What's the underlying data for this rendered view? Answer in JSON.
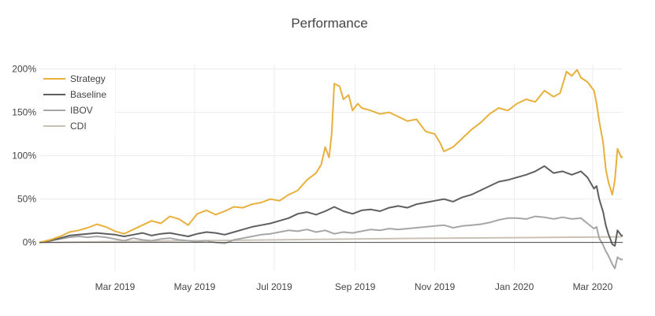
{
  "chart_data": {
    "type": "line",
    "title": "Performance",
    "xlabel": "",
    "ylabel": "",
    "x_range": [
      "2019-01-02",
      "2020-03-24"
    ],
    "ylim": [
      -0.33,
      2.05
    ],
    "yticks": [
      0,
      0.5,
      1.0,
      1.5,
      2.0
    ],
    "ytick_labels": [
      "0%",
      "50%",
      "100%",
      "150%",
      "200%"
    ],
    "xticks": [
      "2019-03-01",
      "2019-05-01",
      "2019-07-01",
      "2019-09-01",
      "2019-11-01",
      "2020-01-01",
      "2020-03-01"
    ],
    "xtick_labels": [
      "Mar 2019",
      "May 2019",
      "Jul 2019",
      "Sep 2019",
      "Nov 2019",
      "Jan 2020",
      "Mar 2020"
    ],
    "grid": true,
    "legend_position": "top-left",
    "series": [
      {
        "name": "Strategy",
        "color": "#e8b03c",
        "points": [
          [
            "2019-01-02",
            0.0
          ],
          [
            "2019-01-10",
            0.03
          ],
          [
            "2019-01-18",
            0.07
          ],
          [
            "2019-01-25",
            0.12
          ],
          [
            "2019-02-01",
            0.14
          ],
          [
            "2019-02-08",
            0.17
          ],
          [
            "2019-02-15",
            0.21
          ],
          [
            "2019-02-22",
            0.18
          ],
          [
            "2019-03-01",
            0.13
          ],
          [
            "2019-03-08",
            0.1
          ],
          [
            "2019-03-15",
            0.15
          ],
          [
            "2019-03-22",
            0.2
          ],
          [
            "2019-03-29",
            0.25
          ],
          [
            "2019-04-05",
            0.22
          ],
          [
            "2019-04-12",
            0.3
          ],
          [
            "2019-04-19",
            0.27
          ],
          [
            "2019-04-26",
            0.2
          ],
          [
            "2019-05-03",
            0.33
          ],
          [
            "2019-05-10",
            0.37
          ],
          [
            "2019-05-17",
            0.32
          ],
          [
            "2019-05-24",
            0.36
          ],
          [
            "2019-05-31",
            0.41
          ],
          [
            "2019-06-07",
            0.4
          ],
          [
            "2019-06-14",
            0.44
          ],
          [
            "2019-06-21",
            0.46
          ],
          [
            "2019-06-28",
            0.5
          ],
          [
            "2019-07-05",
            0.48
          ],
          [
            "2019-07-12",
            0.55
          ],
          [
            "2019-07-19",
            0.6
          ],
          [
            "2019-07-26",
            0.72
          ],
          [
            "2019-08-02",
            0.8
          ],
          [
            "2019-08-06",
            0.9
          ],
          [
            "2019-08-09",
            1.1
          ],
          [
            "2019-08-12",
            0.98
          ],
          [
            "2019-08-14",
            1.25
          ],
          [
            "2019-08-16",
            1.83
          ],
          [
            "2019-08-20",
            1.8
          ],
          [
            "2019-08-23",
            1.65
          ],
          [
            "2019-08-27",
            1.7
          ],
          [
            "2019-08-30",
            1.52
          ],
          [
            "2019-09-03",
            1.6
          ],
          [
            "2019-09-06",
            1.55
          ],
          [
            "2019-09-13",
            1.52
          ],
          [
            "2019-09-20",
            1.48
          ],
          [
            "2019-09-27",
            1.5
          ],
          [
            "2019-10-04",
            1.45
          ],
          [
            "2019-10-11",
            1.4
          ],
          [
            "2019-10-18",
            1.42
          ],
          [
            "2019-10-25",
            1.28
          ],
          [
            "2019-11-01",
            1.25
          ],
          [
            "2019-11-05",
            1.15
          ],
          [
            "2019-11-08",
            1.05
          ],
          [
            "2019-11-15",
            1.1
          ],
          [
            "2019-11-22",
            1.2
          ],
          [
            "2019-11-29",
            1.3
          ],
          [
            "2019-12-06",
            1.38
          ],
          [
            "2019-12-13",
            1.48
          ],
          [
            "2019-12-20",
            1.55
          ],
          [
            "2019-12-27",
            1.52
          ],
          [
            "2020-01-03",
            1.6
          ],
          [
            "2020-01-10",
            1.65
          ],
          [
            "2020-01-17",
            1.62
          ],
          [
            "2020-01-24",
            1.75
          ],
          [
            "2020-01-31",
            1.68
          ],
          [
            "2020-02-05",
            1.72
          ],
          [
            "2020-02-10",
            1.97
          ],
          [
            "2020-02-14",
            1.92
          ],
          [
            "2020-02-18",
            1.99
          ],
          [
            "2020-02-21",
            1.9
          ],
          [
            "2020-02-26",
            1.85
          ],
          [
            "2020-03-02",
            1.75
          ],
          [
            "2020-03-04",
            1.6
          ],
          [
            "2020-03-06",
            1.4
          ],
          [
            "2020-03-09",
            1.15
          ],
          [
            "2020-03-11",
            0.85
          ],
          [
            "2020-03-13",
            0.7
          ],
          [
            "2020-03-16",
            0.55
          ],
          [
            "2020-03-18",
            0.72
          ],
          [
            "2020-03-20",
            1.08
          ],
          [
            "2020-03-23",
            0.98
          ],
          [
            "2020-03-24",
            0.99
          ]
        ]
      },
      {
        "name": "Baseline",
        "color": "#5f5f5f",
        "points": [
          [
            "2019-01-02",
            0.0
          ],
          [
            "2019-01-10",
            0.02
          ],
          [
            "2019-01-18",
            0.05
          ],
          [
            "2019-01-25",
            0.08
          ],
          [
            "2019-02-01",
            0.09
          ],
          [
            "2019-02-08",
            0.1
          ],
          [
            "2019-02-15",
            0.11
          ],
          [
            "2019-02-22",
            0.1
          ],
          [
            "2019-03-01",
            0.09
          ],
          [
            "2019-03-08",
            0.07
          ],
          [
            "2019-03-15",
            0.09
          ],
          [
            "2019-03-22",
            0.11
          ],
          [
            "2019-03-29",
            0.08
          ],
          [
            "2019-04-05",
            0.1
          ],
          [
            "2019-04-12",
            0.11
          ],
          [
            "2019-04-19",
            0.09
          ],
          [
            "2019-04-26",
            0.07
          ],
          [
            "2019-05-03",
            0.1
          ],
          [
            "2019-05-10",
            0.12
          ],
          [
            "2019-05-17",
            0.11
          ],
          [
            "2019-05-24",
            0.09
          ],
          [
            "2019-05-31",
            0.12
          ],
          [
            "2019-06-07",
            0.15
          ],
          [
            "2019-06-14",
            0.18
          ],
          [
            "2019-06-21",
            0.2
          ],
          [
            "2019-06-28",
            0.22
          ],
          [
            "2019-07-05",
            0.25
          ],
          [
            "2019-07-12",
            0.28
          ],
          [
            "2019-07-19",
            0.33
          ],
          [
            "2019-07-26",
            0.35
          ],
          [
            "2019-08-02",
            0.32
          ],
          [
            "2019-08-09",
            0.36
          ],
          [
            "2019-08-16",
            0.41
          ],
          [
            "2019-08-23",
            0.36
          ],
          [
            "2019-08-30",
            0.33
          ],
          [
            "2019-09-06",
            0.37
          ],
          [
            "2019-09-13",
            0.38
          ],
          [
            "2019-09-20",
            0.36
          ],
          [
            "2019-09-27",
            0.4
          ],
          [
            "2019-10-04",
            0.42
          ],
          [
            "2019-10-11",
            0.4
          ],
          [
            "2019-10-18",
            0.44
          ],
          [
            "2019-10-25",
            0.46
          ],
          [
            "2019-11-01",
            0.48
          ],
          [
            "2019-11-08",
            0.5
          ],
          [
            "2019-11-15",
            0.47
          ],
          [
            "2019-11-22",
            0.52
          ],
          [
            "2019-11-29",
            0.55
          ],
          [
            "2019-12-06",
            0.6
          ],
          [
            "2019-12-13",
            0.65
          ],
          [
            "2019-12-20",
            0.7
          ],
          [
            "2019-12-27",
            0.72
          ],
          [
            "2020-01-03",
            0.75
          ],
          [
            "2020-01-10",
            0.78
          ],
          [
            "2020-01-17",
            0.82
          ],
          [
            "2020-01-24",
            0.88
          ],
          [
            "2020-01-31",
            0.8
          ],
          [
            "2020-02-07",
            0.82
          ],
          [
            "2020-02-14",
            0.78
          ],
          [
            "2020-02-21",
            0.82
          ],
          [
            "2020-02-26",
            0.75
          ],
          [
            "2020-03-02",
            0.62
          ],
          [
            "2020-03-04",
            0.65
          ],
          [
            "2020-03-06",
            0.5
          ],
          [
            "2020-03-09",
            0.35
          ],
          [
            "2020-03-11",
            0.2
          ],
          [
            "2020-03-13",
            0.1
          ],
          [
            "2020-03-16",
            -0.02
          ],
          [
            "2020-03-18",
            -0.04
          ],
          [
            "2020-03-20",
            0.14
          ],
          [
            "2020-03-23",
            0.08
          ],
          [
            "2020-03-24",
            0.08
          ]
        ]
      },
      {
        "name": "IBOV",
        "color": "#a6a6a6",
        "points": [
          [
            "2019-01-02",
            0.0
          ],
          [
            "2019-01-10",
            0.02
          ],
          [
            "2019-01-18",
            0.04
          ],
          [
            "2019-01-25",
            0.06
          ],
          [
            "2019-02-01",
            0.07
          ],
          [
            "2019-02-08",
            0.06
          ],
          [
            "2019-02-15",
            0.07
          ],
          [
            "2019-02-22",
            0.06
          ],
          [
            "2019-03-01",
            0.04
          ],
          [
            "2019-03-08",
            0.02
          ],
          [
            "2019-03-15",
            0.05
          ],
          [
            "2019-03-22",
            0.03
          ],
          [
            "2019-03-29",
            0.02
          ],
          [
            "2019-04-05",
            0.04
          ],
          [
            "2019-04-12",
            0.05
          ],
          [
            "2019-04-19",
            0.03
          ],
          [
            "2019-04-26",
            0.02
          ],
          [
            "2019-05-03",
            0.01
          ],
          [
            "2019-05-10",
            0.02
          ],
          [
            "2019-05-17",
            0.0
          ],
          [
            "2019-05-24",
            -0.01
          ],
          [
            "2019-05-31",
            0.03
          ],
          [
            "2019-06-07",
            0.05
          ],
          [
            "2019-06-14",
            0.07
          ],
          [
            "2019-06-21",
            0.09
          ],
          [
            "2019-06-28",
            0.1
          ],
          [
            "2019-07-05",
            0.12
          ],
          [
            "2019-07-12",
            0.14
          ],
          [
            "2019-07-19",
            0.13
          ],
          [
            "2019-07-26",
            0.15
          ],
          [
            "2019-08-02",
            0.12
          ],
          [
            "2019-08-09",
            0.14
          ],
          [
            "2019-08-16",
            0.1
          ],
          [
            "2019-08-23",
            0.12
          ],
          [
            "2019-08-30",
            0.11
          ],
          [
            "2019-09-06",
            0.13
          ],
          [
            "2019-09-13",
            0.15
          ],
          [
            "2019-09-20",
            0.14
          ],
          [
            "2019-09-27",
            0.16
          ],
          [
            "2019-10-04",
            0.15
          ],
          [
            "2019-10-11",
            0.16
          ],
          [
            "2019-10-18",
            0.17
          ],
          [
            "2019-10-25",
            0.18
          ],
          [
            "2019-11-01",
            0.19
          ],
          [
            "2019-11-08",
            0.2
          ],
          [
            "2019-11-15",
            0.17
          ],
          [
            "2019-11-22",
            0.19
          ],
          [
            "2019-11-29",
            0.2
          ],
          [
            "2019-12-06",
            0.21
          ],
          [
            "2019-12-13",
            0.23
          ],
          [
            "2019-12-20",
            0.26
          ],
          [
            "2019-12-27",
            0.28
          ],
          [
            "2020-01-03",
            0.28
          ],
          [
            "2020-01-10",
            0.27
          ],
          [
            "2020-01-17",
            0.3
          ],
          [
            "2020-01-24",
            0.29
          ],
          [
            "2020-01-31",
            0.27
          ],
          [
            "2020-02-07",
            0.29
          ],
          [
            "2020-02-14",
            0.27
          ],
          [
            "2020-02-21",
            0.28
          ],
          [
            "2020-02-26",
            0.22
          ],
          [
            "2020-03-02",
            0.16
          ],
          [
            "2020-03-04",
            0.18
          ],
          [
            "2020-03-06",
            0.05
          ],
          [
            "2020-03-09",
            -0.03
          ],
          [
            "2020-03-11",
            -0.1
          ],
          [
            "2020-03-13",
            -0.15
          ],
          [
            "2020-03-16",
            -0.25
          ],
          [
            "2020-03-18",
            -0.3
          ],
          [
            "2020-03-20",
            -0.17
          ],
          [
            "2020-03-23",
            -0.2
          ],
          [
            "2020-03-24",
            -0.19
          ]
        ]
      },
      {
        "name": "CDI",
        "color": "#cbc2b6",
        "points": [
          [
            "2019-01-02",
            0.0
          ],
          [
            "2019-04-01",
            0.015
          ],
          [
            "2019-07-01",
            0.03
          ],
          [
            "2019-10-01",
            0.045
          ],
          [
            "2020-01-01",
            0.055
          ],
          [
            "2020-03-24",
            0.065
          ]
        ]
      }
    ]
  }
}
